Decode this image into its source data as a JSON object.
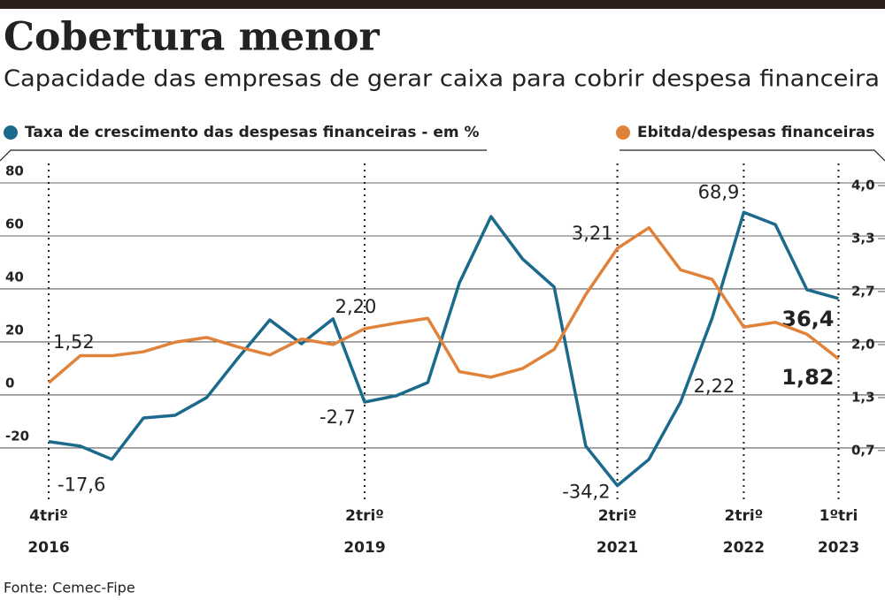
{
  "chart_data": {
    "type": "line",
    "title": "Cobertura menor",
    "subtitle": "Capacidade das empresas de gerar caixa para cobrir despesa financeira",
    "source": "Fonte: Cemec-Fipe",
    "categories": [
      "4triº",
      null,
      null,
      null,
      null,
      null,
      null,
      null,
      null,
      null,
      "2triº",
      null,
      null,
      null,
      null,
      null,
      null,
      null,
      "2triº",
      null,
      null,
      null,
      "2triº",
      null,
      null,
      "1ºtri"
    ],
    "category_years": [
      "2016",
      null,
      null,
      null,
      null,
      null,
      null,
      null,
      null,
      null,
      "2019",
      null,
      null,
      null,
      null,
      null,
      null,
      null,
      "2021",
      null,
      null,
      null,
      "2022",
      null,
      null,
      "2023"
    ],
    "series": [
      {
        "name": "Taxa de crescimento das despesas financeiras - em %",
        "color": "#1b6a8c",
        "axis": "y",
        "values": [
          -17.6,
          -19.3,
          -24.3,
          -8.7,
          -7.7,
          -1,
          14,
          28.3,
          19.3,
          28.7,
          -2.7,
          -0.3,
          4.7,
          42.3,
          67.3,
          51.3,
          40.7,
          -19.3,
          -34.2,
          -24.3,
          -2.7,
          29,
          68.9,
          64.3,
          39.7,
          36.4
        ],
        "value_labels": [
          "-17,6",
          null,
          null,
          null,
          null,
          null,
          null,
          null,
          null,
          null,
          "-2,7",
          null,
          null,
          null,
          null,
          null,
          null,
          null,
          "-34,2",
          null,
          null,
          null,
          "68,9",
          null,
          null,
          "36,4"
        ]
      },
      {
        "name": "Ebitda/despesas financeiras",
        "color": "#e0823a",
        "axis": "y2",
        "values": [
          1.52,
          1.86,
          1.86,
          1.91,
          2.03,
          2.09,
          1.97,
          1.87,
          2.07,
          2.0,
          2.2,
          2.27,
          2.33,
          1.66,
          1.59,
          1.7,
          1.94,
          2.63,
          3.21,
          3.47,
          2.94,
          2.82,
          2.22,
          2.28,
          2.13,
          1.82
        ],
        "value_labels": [
          "1,52",
          null,
          null,
          null,
          null,
          null,
          null,
          null,
          null,
          null,
          "2,20",
          null,
          null,
          null,
          null,
          null,
          null,
          null,
          "3,21",
          null,
          null,
          null,
          "2,22",
          null,
          null,
          "1,82"
        ]
      }
    ],
    "ylim": [
      -37.7,
      90
    ],
    "yticks": [
      -20,
      0,
      20,
      40,
      60,
      80
    ],
    "y2lim": [
      0.11,
      4.367
    ],
    "y2ticks": [
      {
        "value": 0.667,
        "label": "0,7"
      },
      {
        "value": 1.333,
        "label": "1,3"
      },
      {
        "value": 2.0,
        "label": "2,0"
      },
      {
        "value": 2.667,
        "label": "2,7"
      },
      {
        "value": 3.333,
        "label": "3,3"
      },
      {
        "value": 4.0,
        "label": "4,0"
      }
    ],
    "grid": true
  }
}
